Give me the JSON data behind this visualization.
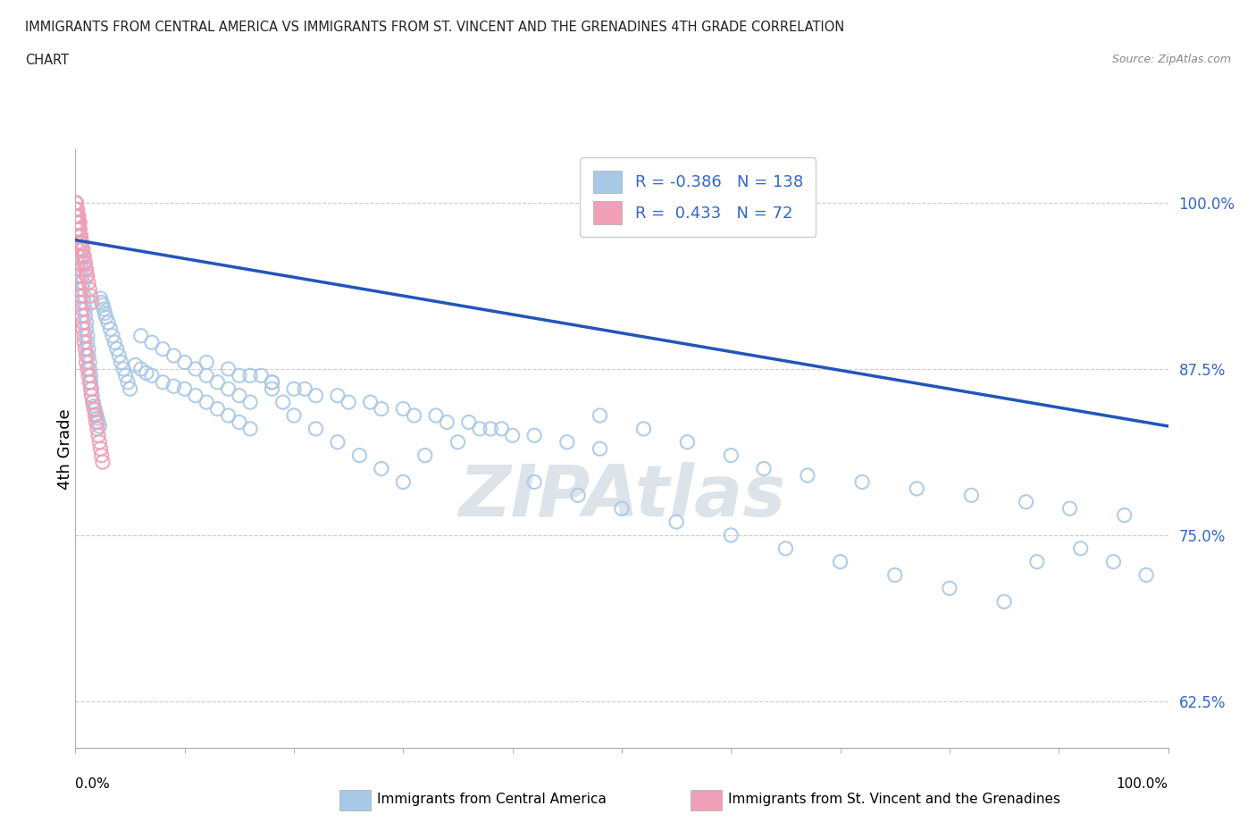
{
  "title_line1": "IMMIGRANTS FROM CENTRAL AMERICA VS IMMIGRANTS FROM ST. VINCENT AND THE GRENADINES 4TH GRADE CORRELATION",
  "title_line2": "CHART",
  "source_text": "Source: ZipAtlas.com",
  "ylabel": "4th Grade",
  "legend_r_blue": "-0.386",
  "legend_n_blue": "138",
  "legend_r_pink": "0.433",
  "legend_n_pink": "72",
  "legend_label_blue": "Immigrants from Central America",
  "legend_label_pink": "Immigrants from St. Vincent and the Grenadines",
  "ytick_labels": [
    "62.5%",
    "75.0%",
    "87.5%",
    "100.0%"
  ],
  "ytick_values": [
    0.625,
    0.75,
    0.875,
    1.0
  ],
  "xlim": [
    0.0,
    1.0
  ],
  "ylim": [
    0.59,
    1.04
  ],
  "blue_color": "#A8C8E8",
  "pink_color": "#F0A0B8",
  "trendline_color": "#2255BB",
  "watermark_color": "#C8D8E8",
  "trendline_y_start": 0.972,
  "trendline_y_end": 0.832,
  "blue_x": [
    0.002,
    0.003,
    0.003,
    0.004,
    0.004,
    0.004,
    0.005,
    0.005,
    0.006,
    0.006,
    0.007,
    0.007,
    0.008,
    0.008,
    0.009,
    0.009,
    0.01,
    0.01,
    0.011,
    0.011,
    0.012,
    0.012,
    0.013,
    0.013,
    0.014,
    0.014,
    0.015,
    0.015,
    0.016,
    0.017,
    0.018,
    0.019,
    0.02,
    0.021,
    0.022,
    0.023,
    0.024,
    0.025,
    0.026,
    0.027,
    0.028,
    0.03,
    0.032,
    0.034,
    0.036,
    0.038,
    0.04,
    0.042,
    0.044,
    0.046,
    0.048,
    0.05,
    0.055,
    0.06,
    0.065,
    0.07,
    0.08,
    0.09,
    0.1,
    0.11,
    0.12,
    0.13,
    0.14,
    0.15,
    0.16,
    0.17,
    0.18,
    0.19,
    0.2,
    0.22,
    0.24,
    0.26,
    0.28,
    0.3,
    0.32,
    0.35,
    0.38,
    0.42,
    0.46,
    0.5,
    0.55,
    0.6,
    0.65,
    0.7,
    0.75,
    0.8,
    0.85,
    0.88,
    0.92,
    0.95,
    0.98,
    0.48,
    0.52,
    0.56,
    0.6,
    0.63,
    0.67,
    0.72,
    0.77,
    0.82,
    0.87,
    0.91,
    0.96,
    0.15,
    0.18,
    0.21,
    0.24,
    0.27,
    0.3,
    0.33,
    0.36,
    0.39,
    0.42,
    0.45,
    0.48,
    0.12,
    0.14,
    0.16,
    0.18,
    0.2,
    0.22,
    0.25,
    0.28,
    0.31,
    0.34,
    0.37,
    0.4,
    0.06,
    0.07,
    0.08,
    0.09,
    0.1,
    0.11,
    0.12,
    0.13,
    0.14,
    0.15,
    0.16
  ],
  "blue_y": [
    0.99,
    0.985,
    0.98,
    0.975,
    0.97,
    0.965,
    0.96,
    0.955,
    0.95,
    0.945,
    0.94,
    0.935,
    0.93,
    0.925,
    0.92,
    0.915,
    0.91,
    0.905,
    0.9,
    0.895,
    0.89,
    0.885,
    0.88,
    0.875,
    0.87,
    0.865,
    0.86,
    0.855,
    0.85,
    0.847,
    0.844,
    0.841,
    0.838,
    0.835,
    0.832,
    0.928,
    0.925,
    0.923,
    0.92,
    0.917,
    0.914,
    0.91,
    0.905,
    0.9,
    0.895,
    0.89,
    0.885,
    0.88,
    0.875,
    0.87,
    0.865,
    0.86,
    0.878,
    0.875,
    0.872,
    0.87,
    0.865,
    0.862,
    0.86,
    0.855,
    0.85,
    0.845,
    0.84,
    0.835,
    0.83,
    0.87,
    0.86,
    0.85,
    0.84,
    0.83,
    0.82,
    0.81,
    0.8,
    0.79,
    0.81,
    0.82,
    0.83,
    0.79,
    0.78,
    0.77,
    0.76,
    0.75,
    0.74,
    0.73,
    0.72,
    0.71,
    0.7,
    0.73,
    0.74,
    0.73,
    0.72,
    0.84,
    0.83,
    0.82,
    0.81,
    0.8,
    0.795,
    0.79,
    0.785,
    0.78,
    0.775,
    0.77,
    0.765,
    0.87,
    0.865,
    0.86,
    0.855,
    0.85,
    0.845,
    0.84,
    0.835,
    0.83,
    0.825,
    0.82,
    0.815,
    0.88,
    0.875,
    0.87,
    0.865,
    0.86,
    0.855,
    0.85,
    0.845,
    0.84,
    0.835,
    0.83,
    0.825,
    0.9,
    0.895,
    0.89,
    0.885,
    0.88,
    0.875,
    0.87,
    0.865,
    0.86,
    0.855,
    0.85
  ],
  "pink_x": [
    0.0,
    0.0,
    0.0,
    0.001,
    0.001,
    0.001,
    0.001,
    0.002,
    0.002,
    0.002,
    0.003,
    0.003,
    0.004,
    0.004,
    0.005,
    0.005,
    0.006,
    0.006,
    0.007,
    0.007,
    0.008,
    0.008,
    0.009,
    0.01,
    0.01,
    0.011,
    0.012,
    0.013,
    0.014,
    0.015,
    0.016,
    0.017,
    0.018,
    0.019,
    0.02,
    0.021,
    0.022,
    0.023,
    0.024,
    0.025,
    0.003,
    0.004,
    0.005,
    0.006,
    0.007,
    0.008,
    0.009,
    0.01,
    0.011,
    0.012,
    0.013,
    0.014,
    0.015,
    0.001,
    0.002,
    0.003,
    0.004,
    0.005,
    0.006,
    0.007,
    0.008,
    0.009,
    0.01,
    0.001,
    0.002,
    0.003,
    0.004,
    0.005,
    0.001,
    0.002,
    0.003,
    0.004
  ],
  "pink_y": [
    1.0,
    0.995,
    0.99,
    0.985,
    0.98,
    0.975,
    0.97,
    0.965,
    0.96,
    0.955,
    0.95,
    0.945,
    0.94,
    0.935,
    0.93,
    0.925,
    0.92,
    0.915,
    0.91,
    0.905,
    0.9,
    0.895,
    0.89,
    0.885,
    0.88,
    0.875,
    0.87,
    0.865,
    0.86,
    0.855,
    0.85,
    0.845,
    0.84,
    0.835,
    0.83,
    0.825,
    0.82,
    0.815,
    0.81,
    0.805,
    0.985,
    0.98,
    0.975,
    0.97,
    0.965,
    0.96,
    0.955,
    0.95,
    0.945,
    0.94,
    0.935,
    0.93,
    0.925,
    0.99,
    0.985,
    0.98,
    0.975,
    0.97,
    0.965,
    0.96,
    0.955,
    0.95,
    0.945,
    0.995,
    0.99,
    0.985,
    0.98,
    0.975,
    1.0,
    0.995,
    0.99,
    0.985
  ]
}
